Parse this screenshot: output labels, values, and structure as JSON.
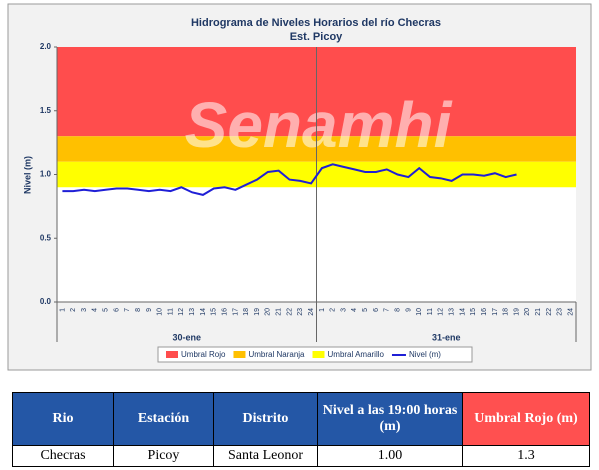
{
  "chart_data": {
    "type": "line",
    "title": "Hidrograma de Niveles Horarios del río Checras",
    "subtitle": "Est. Picoy",
    "watermark": "Senamhi",
    "ylabel": "Nivel (m)",
    "ylim": [
      0,
      2
    ],
    "yticks": [
      {
        "value": 0,
        "label": "0.0"
      },
      {
        "value": 0.5,
        "label": "0.5"
      },
      {
        "value": 1,
        "label": "1.0"
      },
      {
        "value": 1.5,
        "label": "1.5"
      },
      {
        "value": 2,
        "label": "2.0"
      }
    ],
    "categories": [
      "1",
      "2",
      "3",
      "4",
      "5",
      "6",
      "7",
      "8",
      "9",
      "10",
      "11",
      "12",
      "13",
      "14",
      "15",
      "16",
      "17",
      "18",
      "19",
      "20",
      "21",
      "22",
      "23",
      "24",
      "1",
      "2",
      "3",
      "4",
      "5",
      "6",
      "7",
      "8",
      "9",
      "10",
      "11",
      "12",
      "13",
      "14",
      "15",
      "16",
      "17",
      "18",
      "19",
      "20",
      "21",
      "22",
      "23",
      "24"
    ],
    "groups": [
      "30-ene",
      "31-ene"
    ],
    "bands": [
      {
        "name": "Umbral Rojo",
        "color": "#ff4d4d",
        "from": 1.3,
        "to": 2.0
      },
      {
        "name": "Umbral Naranja",
        "color": "#ffc000",
        "from": 1.1,
        "to": 1.3
      },
      {
        "name": "Umbral Amarillo",
        "color": "#ffff00",
        "from": 0.9,
        "to": 1.1
      }
    ],
    "series": [
      {
        "name": "Nivel (m)",
        "color": "#1f1fd6",
        "values": [
          0.87,
          0.87,
          0.88,
          0.87,
          0.88,
          0.89,
          0.89,
          0.88,
          0.87,
          0.88,
          0.87,
          0.9,
          0.86,
          0.84,
          0.89,
          0.9,
          0.88,
          0.92,
          0.96,
          1.02,
          1.03,
          0.96,
          0.95,
          0.93,
          1.05,
          1.08,
          1.06,
          1.04,
          1.02,
          1.02,
          1.04,
          1.0,
          0.98,
          1.05,
          0.98,
          0.97,
          0.95,
          1.0,
          1.0,
          0.99,
          1.01,
          0.98,
          1.0,
          null,
          null,
          null,
          null,
          null
        ]
      }
    ]
  },
  "table": {
    "header": [
      "Rio",
      "Estación",
      "Distrito",
      "Nivel a las 19:00 horas (m)",
      "Umbral Rojo (m)"
    ],
    "rows": [
      [
        "Checras",
        "Picoy",
        "Santa Leonor",
        "1.00",
        "1.3"
      ]
    ]
  }
}
